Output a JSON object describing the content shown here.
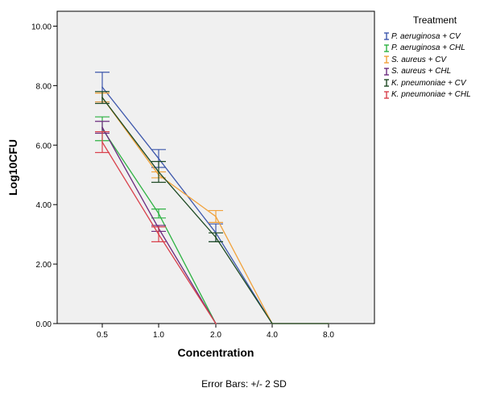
{
  "chart_data": {
    "type": "line",
    "xlabel": "Concentration",
    "ylabel": "Log10CFU",
    "categories": [
      "0.5",
      "1.0",
      "2.0",
      "4.0",
      "8.0"
    ],
    "ylim": [
      0,
      10.5
    ],
    "yticks": [
      "0.00",
      "2.00",
      "4.00",
      "6.00",
      "8.00",
      "10.00"
    ],
    "grid": false,
    "legend_title": "Treatment",
    "legend_position": "right",
    "footnote": "Error Bars: +/- 2 SD",
    "series": [
      {
        "name": "P. aeruginosa + CV",
        "color": "#3e58ac",
        "values": [
          7.95,
          5.55,
          3.05,
          0,
          0
        ],
        "err": [
          0.5,
          0.3,
          0.3,
          0,
          0
        ]
      },
      {
        "name": "P. aeruginosa + CHL",
        "color": "#2db242",
        "values": [
          6.55,
          3.7,
          0,
          null,
          null
        ],
        "err": [
          0.4,
          0.15,
          0,
          null,
          null
        ]
      },
      {
        "name": "S. aureus + CV",
        "color": "#f1a23b",
        "values": [
          7.6,
          5.0,
          3.6,
          0,
          0
        ],
        "err": [
          0.15,
          0.1,
          0.2,
          0,
          0
        ]
      },
      {
        "name": "S. aureus + CHL",
        "color": "#6b2c7e",
        "values": [
          6.6,
          3.2,
          0,
          null,
          null
        ],
        "err": [
          0.2,
          0.1,
          0,
          null,
          null
        ]
      },
      {
        "name": "K. pneumoniae + CV",
        "color": "#1e4a24",
        "values": [
          7.6,
          5.1,
          2.9,
          0,
          0
        ],
        "err": [
          0.2,
          0.35,
          0.15,
          0,
          0
        ]
      },
      {
        "name": "K. pneumoniae + CHL",
        "color": "#d9414c",
        "values": [
          6.1,
          3.0,
          0,
          null,
          null
        ],
        "err": [
          0.35,
          0.25,
          0,
          null,
          null
        ]
      }
    ]
  }
}
